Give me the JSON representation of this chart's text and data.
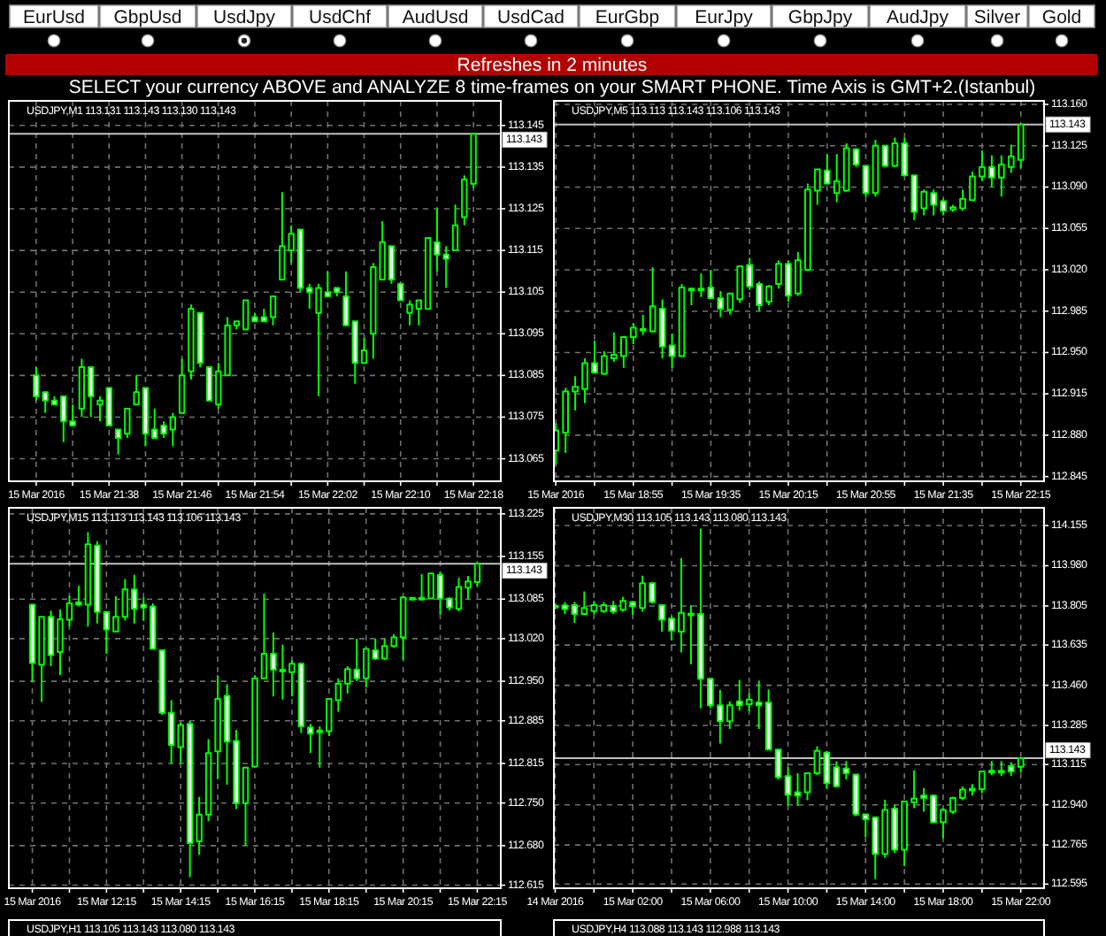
{
  "chart_data": [
    {
      "type": "other",
      "title": "Refreshes in 2 minutes",
      "subtitle": "SELECT your currency ABOVE and ANALYZE 8 time-frames on your SMART PHONE. Time Axis is GMT+2.(Istanbul)",
      "annotations": [
        "EurUsd",
        "GbpUsd",
        "UsdJpy",
        "UsdChf",
        "AudUsd",
        "UsdCad",
        "EurGbp",
        "EurJpy",
        "GbpJpy",
        "AudJpy",
        "Silver",
        "Gold"
      ]
    },
    {
      "type": "candlestick",
      "title": "USDJPY,M1 113.131 113.143 113.130 113.143",
      "color": "#00ff00",
      "grid": true,
      "x": [
        "2016-03-15T21:30",
        "2016-03-15T21:31",
        "2016-03-15T21:32",
        "2016-03-15T21:33",
        "2016-03-15T21:34",
        "2016-03-15T21:35",
        "2016-03-15T21:36",
        "2016-03-15T21:37",
        "2016-03-15T21:38",
        "2016-03-15T21:39",
        "2016-03-15T21:40",
        "2016-03-15T21:41",
        "2016-03-15T21:42",
        "2016-03-15T21:43",
        "2016-03-15T21:44",
        "2016-03-15T21:45",
        "2016-03-15T21:46",
        "2016-03-15T21:47",
        "2016-03-15T21:48",
        "2016-03-15T21:49",
        "2016-03-15T21:50",
        "2016-03-15T21:51",
        "2016-03-15T21:52",
        "2016-03-15T21:53",
        "2016-03-15T21:54",
        "2016-03-15T21:55",
        "2016-03-15T21:56",
        "2016-03-15T21:57",
        "2016-03-15T21:58",
        "2016-03-15T21:59",
        "2016-03-15T22:00",
        "2016-03-15T22:01",
        "2016-03-15T22:02",
        "2016-03-15T22:03",
        "2016-03-15T22:04",
        "2016-03-15T22:05",
        "2016-03-15T22:06",
        "2016-03-15T22:07",
        "2016-03-15T22:08",
        "2016-03-15T22:09",
        "2016-03-15T22:10",
        "2016-03-15T22:11",
        "2016-03-15T22:12",
        "2016-03-15T22:13",
        "2016-03-15T22:14",
        "2016-03-15T22:15",
        "2016-03-15T22:16",
        "2016-03-15T22:17",
        "2016-03-15T22:18"
      ],
      "ohlc": [
        [
          113.085,
          113.087,
          113.079,
          113.08
        ],
        [
          113.081,
          113.081,
          113.076,
          113.079
        ],
        [
          113.079,
          113.08,
          113.078,
          113.078
        ],
        [
          113.08,
          113.08,
          113.069,
          113.074
        ],
        [
          113.074,
          113.078,
          113.073,
          113.073
        ],
        [
          113.077,
          113.089,
          113.075,
          113.087
        ],
        [
          113.087,
          113.087,
          113.075,
          113.08
        ],
        [
          113.078,
          113.08,
          113.074,
          113.079
        ],
        [
          113.082,
          113.082,
          113.073,
          113.073
        ],
        [
          113.072,
          113.072,
          113.066,
          113.07
        ],
        [
          113.071,
          113.077,
          113.07,
          113.077
        ],
        [
          113.078,
          113.085,
          113.078,
          113.081
        ],
        [
          113.082,
          113.082,
          113.068,
          113.071
        ],
        [
          113.072,
          113.077,
          113.07,
          113.07
        ],
        [
          113.073,
          113.074,
          113.07,
          113.071
        ],
        [
          113.072,
          113.076,
          113.068,
          113.075
        ],
        [
          113.076,
          113.089,
          113.076,
          113.085
        ],
        [
          113.086,
          113.102,
          113.084,
          113.101
        ],
        [
          113.1,
          113.1,
          113.087,
          113.088
        ],
        [
          113.087,
          113.087,
          113.079,
          113.079
        ],
        [
          113.078,
          113.088,
          113.077,
          113.086
        ],
        [
          113.085,
          113.099,
          113.085,
          113.097
        ],
        [
          113.097,
          113.098,
          113.096,
          113.098
        ],
        [
          113.096,
          113.103,
          113.096,
          113.103
        ],
        [
          113.099,
          113.1,
          113.098,
          113.098
        ],
        [
          113.099,
          113.101,
          113.098,
          113.098
        ],
        [
          113.099,
          113.104,
          113.097,
          113.104
        ],
        [
          113.108,
          113.129,
          113.108,
          113.116
        ],
        [
          113.115,
          113.121,
          113.112,
          113.119
        ],
        [
          113.12,
          113.12,
          113.105,
          113.106
        ],
        [
          113.106,
          113.107,
          113.101,
          113.105
        ],
        [
          113.1,
          113.107,
          113.08,
          113.106
        ],
        [
          113.105,
          113.11,
          113.104,
          113.104
        ],
        [
          113.106,
          113.106,
          113.104,
          113.105
        ],
        [
          113.104,
          113.11,
          113.097,
          113.097
        ],
        [
          113.098,
          113.098,
          113.083,
          113.088
        ],
        [
          113.088,
          113.094,
          113.088,
          113.091
        ],
        [
          113.095,
          113.112,
          113.089,
          113.111
        ],
        [
          113.108,
          113.122,
          113.108,
          113.117
        ],
        [
          113.116,
          113.116,
          113.107,
          113.108
        ],
        [
          113.107,
          113.107,
          113.103,
          113.103
        ],
        [
          113.1,
          113.103,
          113.097,
          113.102
        ],
        [
          113.101,
          113.103,
          113.097,
          113.103
        ],
        [
          113.101,
          113.118,
          113.101,
          113.118
        ],
        [
          113.117,
          113.125,
          113.11,
          113.114
        ],
        [
          113.114,
          113.116,
          113.106,
          113.113
        ],
        [
          113.115,
          113.126,
          113.115,
          113.121
        ],
        [
          113.123,
          113.133,
          113.121,
          113.132
        ],
        [
          113.131,
          113.143,
          113.13,
          113.143
        ]
      ],
      "xlim": [
        "2016-03-15T21:27",
        "2016-03-15T22:21"
      ],
      "xticks": [
        {
          "value": "2016-03-15T21:30",
          "label": "15 Mar 2016"
        },
        {
          "value": "2016-03-15T21:34",
          "label": null
        },
        {
          "value": "2016-03-15T21:38",
          "label": "15 Mar 21:38"
        },
        {
          "value": "2016-03-15T21:42",
          "label": null
        },
        {
          "value": "2016-03-15T21:46",
          "label": "15 Mar 21:46"
        },
        {
          "value": "2016-03-15T21:50",
          "label": null
        },
        {
          "value": "2016-03-15T21:54",
          "label": "15 Mar 21:54"
        },
        {
          "value": "2016-03-15T21:58",
          "label": null
        },
        {
          "value": "2016-03-15T22:02",
          "label": "15 Mar 22:02"
        },
        {
          "value": "2016-03-15T22:06",
          "label": null
        },
        {
          "value": "2016-03-15T22:10",
          "label": "15 Mar 22:10"
        },
        {
          "value": "2016-03-15T22:14",
          "label": null
        },
        {
          "value": "2016-03-15T22:18",
          "label": "15 Mar 22:18"
        }
      ],
      "ylim": [
        113.0596,
        113.1509
      ],
      "yticks": [
        113.065,
        113.075,
        113.085,
        113.095,
        113.105,
        113.115,
        113.125,
        113.135,
        113.145
      ],
      "ref_lines": [
        {
          "axis": "y",
          "value": 113.143,
          "label": "113.143",
          "color": "#c0c0c0"
        }
      ]
    },
    {
      "type": "candlestick",
      "title": "USDJPY,M5 113.113 113.143 113.106 113.143",
      "color": "#00ff00",
      "grid": true,
      "x": [
        "2016-03-15T18:15",
        "2016-03-15T18:20",
        "2016-03-15T18:25",
        "2016-03-15T18:30",
        "2016-03-15T18:35",
        "2016-03-15T18:40",
        "2016-03-15T18:45",
        "2016-03-15T18:50",
        "2016-03-15T18:55",
        "2016-03-15T19:00",
        "2016-03-15T19:05",
        "2016-03-15T19:10",
        "2016-03-15T19:15",
        "2016-03-15T19:20",
        "2016-03-15T19:25",
        "2016-03-15T19:30",
        "2016-03-15T19:35",
        "2016-03-15T19:40",
        "2016-03-15T19:45",
        "2016-03-15T19:50",
        "2016-03-15T19:55",
        "2016-03-15T20:00",
        "2016-03-15T20:05",
        "2016-03-15T20:10",
        "2016-03-15T20:15",
        "2016-03-15T20:20",
        "2016-03-15T20:25",
        "2016-03-15T20:30",
        "2016-03-15T20:35",
        "2016-03-15T20:40",
        "2016-03-15T20:45",
        "2016-03-15T20:50",
        "2016-03-15T20:55",
        "2016-03-15T21:00",
        "2016-03-15T21:05",
        "2016-03-15T21:10",
        "2016-03-15T21:15",
        "2016-03-15T21:20",
        "2016-03-15T21:25",
        "2016-03-15T21:30",
        "2016-03-15T21:35",
        "2016-03-15T21:40",
        "2016-03-15T21:45",
        "2016-03-15T21:50",
        "2016-03-15T21:55",
        "2016-03-15T22:00",
        "2016-03-15T22:05",
        "2016-03-15T22:10",
        "2016-03-15T22:15"
      ],
      "ohlc": [
        [
          112.867,
          112.89,
          112.855,
          112.884
        ],
        [
          112.882,
          112.92,
          112.865,
          112.917
        ],
        [
          112.917,
          112.93,
          112.901,
          112.921
        ],
        [
          112.919,
          112.945,
          112.907,
          112.941
        ],
        [
          112.941,
          112.96,
          112.932,
          112.933
        ],
        [
          112.932,
          112.951,
          112.931,
          112.947
        ],
        [
          112.945,
          112.967,
          112.942,
          112.948
        ],
        [
          112.947,
          112.963,
          112.937,
          112.963
        ],
        [
          112.963,
          112.975,
          112.957,
          112.971
        ],
        [
          112.969,
          112.982,
          112.965,
          112.97
        ],
        [
          112.968,
          113.022,
          112.967,
          112.989
        ],
        [
          112.987,
          112.995,
          112.945,
          112.955
        ],
        [
          112.956,
          112.966,
          112.937,
          112.947
        ],
        [
          112.947,
          113.008,
          112.947,
          113.005
        ],
        [
          113.003,
          113.005,
          112.99,
          113.004
        ],
        [
          113.003,
          113.017,
          112.997,
          113.004
        ],
        [
          113.005,
          113.02,
          112.995,
          112.996
        ],
        [
          112.996,
          113.002,
          112.98,
          112.987
        ],
        [
          112.986,
          113.0,
          112.982,
          113.0
        ],
        [
          112.995,
          113.023,
          112.992,
          113.023
        ],
        [
          113.024,
          113.03,
          113.003,
          113.006
        ],
        [
          113.008,
          113.01,
          112.985,
          112.99
        ],
        [
          112.993,
          113.007,
          112.99,
          113.006
        ],
        [
          113.008,
          113.028,
          113.004,
          113.025
        ],
        [
          113.025,
          113.028,
          112.993,
          112.998
        ],
        [
          113.0,
          113.035,
          112.998,
          113.028
        ],
        [
          113.02,
          113.093,
          113.02,
          113.088
        ],
        [
          113.087,
          113.105,
          113.075,
          113.105
        ],
        [
          113.104,
          113.118,
          113.092,
          113.093
        ],
        [
          113.085,
          113.118,
          113.077,
          113.095
        ],
        [
          113.087,
          113.127,
          113.086,
          113.123
        ],
        [
          113.122,
          113.123,
          113.107,
          113.109
        ],
        [
          113.108,
          113.108,
          113.082,
          113.085
        ],
        [
          113.085,
          113.13,
          113.082,
          113.125
        ],
        [
          113.125,
          113.125,
          113.107,
          113.108
        ],
        [
          113.108,
          113.132,
          113.107,
          113.127
        ],
        [
          113.127,
          113.132,
          113.1,
          113.1
        ],
        [
          113.1,
          113.1,
          113.062,
          113.069
        ],
        [
          113.072,
          113.088,
          113.066,
          113.086
        ],
        [
          113.085,
          113.088,
          113.066,
          113.075
        ],
        [
          113.078,
          113.08,
          113.066,
          113.07
        ],
        [
          113.071,
          113.075,
          113.069,
          113.073
        ],
        [
          113.072,
          113.088,
          113.07,
          113.08
        ],
        [
          113.079,
          113.103,
          113.078,
          113.099
        ],
        [
          113.099,
          113.121,
          113.095,
          113.107
        ],
        [
          113.107,
          113.117,
          113.09,
          113.098
        ],
        [
          113.098,
          113.117,
          113.082,
          113.109
        ],
        [
          113.107,
          113.126,
          113.102,
          113.116
        ],
        [
          113.113,
          113.143,
          113.106,
          113.143
        ]
      ],
      "xlim": [
        "2016-03-15T18:14",
        "2016-03-15T22:27"
      ],
      "xticks": [
        {
          "value": "2016-03-15T18:15",
          "label": "15 Mar 2016"
        },
        {
          "value": "2016-03-15T18:35",
          "label": null
        },
        {
          "value": "2016-03-15T18:55",
          "label": "15 Mar 18:55"
        },
        {
          "value": "2016-03-15T19:15",
          "label": null
        },
        {
          "value": "2016-03-15T19:35",
          "label": "15 Mar 19:35"
        },
        {
          "value": "2016-03-15T19:55",
          "label": null
        },
        {
          "value": "2016-03-15T20:15",
          "label": "15 Mar 20:15"
        },
        {
          "value": "2016-03-15T20:35",
          "label": null
        },
        {
          "value": "2016-03-15T20:55",
          "label": "15 Mar 20:55"
        },
        {
          "value": "2016-03-15T21:15",
          "label": null
        },
        {
          "value": "2016-03-15T21:35",
          "label": "15 Mar 21:35"
        },
        {
          "value": "2016-03-15T21:55",
          "label": null
        },
        {
          "value": "2016-03-15T22:15",
          "label": "15 Mar 22:15"
        }
      ],
      "ylim": [
        112.841,
        113.163
      ],
      "yticks": [
        {
          "value": 113.16,
          "label": "113.160"
        },
        113.125,
        {
          "value": 113.09,
          "label": "113.090"
        },
        113.055,
        {
          "value": 113.02,
          "label": "113.020"
        },
        112.985,
        {
          "value": 112.95,
          "label": "112.950"
        },
        112.915,
        {
          "value": 112.88,
          "label": "112.880"
        },
        112.845
      ],
      "ref_lines": [
        {
          "axis": "y",
          "value": 113.143,
          "label": "113.143",
          "color": "#c0c0c0"
        }
      ]
    },
    {
      "type": "candlestick",
      "title": "USDJPY,M15 113.113 113.143 113.106 113.143",
      "color": "#00ff00",
      "grid": true,
      "x": [
        "2016-03-15T10:15",
        "2016-03-15T10:30",
        "2016-03-15T10:45",
        "2016-03-15T11:00",
        "2016-03-15T11:15",
        "2016-03-15T11:30",
        "2016-03-15T11:45",
        "2016-03-15T12:00",
        "2016-03-15T12:15",
        "2016-03-15T12:30",
        "2016-03-15T12:45",
        "2016-03-15T13:00",
        "2016-03-15T13:15",
        "2016-03-15T13:30",
        "2016-03-15T13:45",
        "2016-03-15T14:00",
        "2016-03-15T14:15",
        "2016-03-15T14:30",
        "2016-03-15T14:45",
        "2016-03-15T15:00",
        "2016-03-15T15:15",
        "2016-03-15T15:30",
        "2016-03-15T15:45",
        "2016-03-15T16:00",
        "2016-03-15T16:15",
        "2016-03-15T16:30",
        "2016-03-15T16:45",
        "2016-03-15T17:00",
        "2016-03-15T17:15",
        "2016-03-15T17:30",
        "2016-03-15T17:45",
        "2016-03-15T18:00",
        "2016-03-15T18:15",
        "2016-03-15T18:30",
        "2016-03-15T18:45",
        "2016-03-15T19:00",
        "2016-03-15T19:15",
        "2016-03-15T19:30",
        "2016-03-15T19:45",
        "2016-03-15T20:00",
        "2016-03-15T20:15",
        "2016-03-15T20:30",
        "2016-03-15T20:45",
        "2016-03-15T21:00",
        "2016-03-15T21:15",
        "2016-03-15T21:30",
        "2016-03-15T21:45",
        "2016-03-15T22:00",
        "2016-03-15T22:15"
      ],
      "ohlc": [
        [
          113.076,
          113.076,
          112.95,
          112.98
        ],
        [
          112.977,
          113.056,
          112.916,
          113.056
        ],
        [
          113.056,
          113.066,
          112.975,
          112.993
        ],
        [
          112.998,
          113.068,
          112.96,
          113.052
        ],
        [
          113.051,
          113.09,
          113.04,
          113.078
        ],
        [
          113.08,
          113.107,
          113.073,
          113.076
        ],
        [
          113.076,
          113.195,
          113.04,
          113.175
        ],
        [
          113.173,
          113.18,
          113.045,
          113.064
        ],
        [
          113.064,
          113.064,
          112.995,
          113.035
        ],
        [
          113.032,
          113.09,
          113.032,
          113.056
        ],
        [
          113.056,
          113.118,
          113.05,
          113.101
        ],
        [
          113.101,
          113.125,
          113.045,
          113.069
        ],
        [
          113.076,
          113.088,
          113.049,
          113.071
        ],
        [
          113.073,
          113.078,
          113.003,
          113.003
        ],
        [
          113.001,
          113.002,
          112.895,
          112.898
        ],
        [
          112.898,
          112.919,
          112.815,
          112.845
        ],
        [
          112.842,
          112.882,
          112.815,
          112.878
        ],
        [
          112.88,
          112.885,
          112.628,
          112.684
        ],
        [
          112.687,
          112.76,
          112.665,
          112.731
        ],
        [
          112.731,
          112.855,
          112.72,
          112.832
        ],
        [
          112.835,
          112.96,
          112.789,
          112.921
        ],
        [
          112.926,
          112.945,
          112.78,
          112.851
        ],
        [
          112.852,
          112.87,
          112.74,
          112.75
        ],
        [
          112.75,
          112.808,
          112.68,
          112.808
        ],
        [
          112.81,
          112.96,
          112.81,
          112.955
        ],
        [
          112.955,
          113.094,
          112.955,
          112.995
        ],
        [
          112.995,
          113.03,
          112.925,
          112.969
        ],
        [
          112.969,
          113.01,
          112.92,
          112.966
        ],
        [
          112.965,
          112.985,
          112.925,
          112.979
        ],
        [
          112.979,
          112.979,
          112.865,
          112.876
        ],
        [
          112.874,
          112.88,
          112.832,
          112.864
        ],
        [
          112.867,
          112.876,
          112.808,
          112.869
        ],
        [
          112.868,
          112.921,
          112.86,
          112.921
        ],
        [
          112.919,
          112.955,
          112.9,
          112.946
        ],
        [
          112.946,
          112.975,
          112.93,
          112.97
        ],
        [
          112.969,
          113.02,
          112.95,
          112.955
        ],
        [
          112.955,
          113.003,
          112.94,
          113.003
        ],
        [
          113.001,
          113.02,
          112.985,
          112.987
        ],
        [
          112.987,
          113.02,
          112.985,
          113.008
        ],
        [
          113.008,
          113.027,
          113.005,
          113.022
        ],
        [
          113.022,
          113.09,
          112.985,
          113.088
        ],
        [
          113.086,
          113.088,
          113.085,
          113.087
        ],
        [
          113.086,
          113.126,
          113.085,
          113.087
        ],
        [
          113.086,
          113.127,
          113.086,
          113.127
        ],
        [
          113.125,
          113.13,
          113.06,
          113.086
        ],
        [
          113.086,
          113.088,
          113.066,
          113.071
        ],
        [
          113.069,
          113.12,
          113.065,
          113.105
        ],
        [
          113.104,
          113.123,
          113.085,
          113.114
        ],
        [
          113.113,
          113.143,
          113.106,
          113.143
        ]
      ],
      "xlim": [
        "2016-03-15T09:37",
        "2016-03-15T22:53"
      ],
      "xticks": [
        {
          "value": "2016-03-15T10:15",
          "label": "15 Mar 2016"
        },
        {
          "value": "2016-03-15T11:15",
          "label": null
        },
        {
          "value": "2016-03-15T12:15",
          "label": "15 Mar 12:15"
        },
        {
          "value": "2016-03-15T13:15",
          "label": null
        },
        {
          "value": "2016-03-15T14:15",
          "label": "15 Mar 14:15"
        },
        {
          "value": "2016-03-15T15:15",
          "label": null
        },
        {
          "value": "2016-03-15T16:15",
          "label": "15 Mar 16:15"
        },
        {
          "value": "2016-03-15T17:15",
          "label": null
        },
        {
          "value": "2016-03-15T18:15",
          "label": "15 Mar 18:15"
        },
        {
          "value": "2016-03-15T19:15",
          "label": null
        },
        {
          "value": "2016-03-15T20:15",
          "label": "15 Mar 20:15"
        },
        {
          "value": "2016-03-15T21:15",
          "label": null
        },
        {
          "value": "2016-03-15T22:15",
          "label": "15 Mar 22:15"
        }
      ],
      "ylim": [
        112.61,
        113.235
      ],
      "yticks": [
        113.225,
        113.155,
        113.085,
        {
          "value": 113.02,
          "label": "113.020"
        },
        {
          "value": 112.95,
          "label": "112.950"
        },
        112.885,
        112.815,
        {
          "value": 112.75,
          "label": "112.750"
        },
        {
          "value": 112.68,
          "label": "112.680"
        },
        112.615
      ],
      "ref_lines": [
        {
          "axis": "y",
          "value": 113.143,
          "label": "113.143",
          "color": "#c0c0c0"
        }
      ]
    },
    {
      "type": "candlestick",
      "title": "USDJPY,M30 113.105 113.143 113.080 113.143",
      "color": "#00ff00",
      "grid": true,
      "x": [
        "2016-03-14T22:00",
        "2016-03-14T22:30",
        "2016-03-14T23:00",
        "2016-03-14T23:30",
        "2016-03-15T00:00",
        "2016-03-15T00:30",
        "2016-03-15T01:00",
        "2016-03-15T01:30",
        "2016-03-15T02:00",
        "2016-03-15T02:30",
        "2016-03-15T03:00",
        "2016-03-15T03:30",
        "2016-03-15T04:00",
        "2016-03-15T04:30",
        "2016-03-15T05:00",
        "2016-03-15T05:30",
        "2016-03-15T06:00",
        "2016-03-15T06:30",
        "2016-03-15T07:00",
        "2016-03-15T07:30",
        "2016-03-15T08:00",
        "2016-03-15T08:30",
        "2016-03-15T09:00",
        "2016-03-15T09:30",
        "2016-03-15T10:00",
        "2016-03-15T10:30",
        "2016-03-15T11:00",
        "2016-03-15T11:30",
        "2016-03-15T12:00",
        "2016-03-15T12:30",
        "2016-03-15T13:00",
        "2016-03-15T13:30",
        "2016-03-15T14:00",
        "2016-03-15T14:30",
        "2016-03-15T15:00",
        "2016-03-15T15:30",
        "2016-03-15T16:00",
        "2016-03-15T16:30",
        "2016-03-15T17:00",
        "2016-03-15T17:30",
        "2016-03-15T18:00",
        "2016-03-15T18:30",
        "2016-03-15T19:00",
        "2016-03-15T19:30",
        "2016-03-15T20:00",
        "2016-03-15T20:30",
        "2016-03-15T21:00",
        "2016-03-15T21:30",
        "2016-03-15T22:00"
      ],
      "ohlc": [
        [
          113.8,
          113.815,
          113.79,
          113.806
        ],
        [
          113.808,
          113.822,
          113.77,
          113.791
        ],
        [
          113.809,
          113.822,
          113.732,
          113.77
        ],
        [
          113.77,
          113.868,
          113.765,
          113.796
        ],
        [
          113.783,
          113.827,
          113.77,
          113.809
        ],
        [
          113.783,
          113.822,
          113.775,
          113.809
        ],
        [
          113.806,
          113.827,
          113.77,
          113.781
        ],
        [
          113.788,
          113.845,
          113.78,
          113.827
        ],
        [
          113.822,
          113.827,
          113.765,
          113.804
        ],
        [
          113.796,
          113.937,
          113.78,
          113.904
        ],
        [
          113.904,
          113.91,
          113.815,
          113.822
        ],
        [
          113.809,
          113.812,
          113.693,
          113.745
        ],
        [
          113.75,
          113.76,
          113.655,
          113.698
        ],
        [
          113.693,
          114.014,
          113.603,
          113.775
        ],
        [
          113.765,
          113.809,
          113.552,
          113.772
        ],
        [
          113.77,
          114.142,
          113.36,
          113.488
        ],
        [
          113.488,
          113.488,
          113.36,
          113.373
        ],
        [
          113.373,
          113.44,
          113.206,
          113.303
        ],
        [
          113.303,
          113.39,
          113.27,
          113.373
        ],
        [
          113.39,
          113.483,
          113.35,
          113.373
        ],
        [
          113.378,
          113.425,
          113.347,
          113.398
        ],
        [
          113.385,
          113.48,
          113.27,
          113.373
        ],
        [
          113.385,
          113.442,
          113.18,
          113.18
        ],
        [
          113.18,
          113.18,
          113.05,
          113.06
        ],
        [
          113.065,
          113.103,
          112.936,
          112.983
        ],
        [
          112.995,
          113.077,
          112.935,
          112.98
        ],
        [
          112.995,
          113.077,
          112.96,
          113.077
        ],
        [
          113.077,
          113.195,
          113.07,
          113.175
        ],
        [
          113.167,
          113.175,
          113.01,
          113.034
        ],
        [
          113.103,
          113.129,
          113.015,
          113.021
        ],
        [
          113.098,
          113.13,
          113.05,
          113.077
        ],
        [
          113.072,
          113.072,
          112.89,
          112.898
        ],
        [
          112.898,
          112.898,
          112.8,
          112.877
        ],
        [
          112.885,
          112.89,
          112.616,
          112.726
        ],
        [
          112.726,
          112.962,
          112.71,
          112.918
        ],
        [
          112.923,
          112.94,
          112.73,
          112.744
        ],
        [
          112.744,
          112.954,
          112.672,
          112.954
        ],
        [
          112.951,
          113.09,
          112.925,
          112.967
        ],
        [
          112.98,
          113.013,
          112.91,
          112.97
        ],
        [
          112.98,
          112.985,
          112.86,
          112.864
        ],
        [
          112.864,
          112.925,
          112.795,
          112.918
        ],
        [
          112.91,
          112.975,
          112.9,
          112.97
        ],
        [
          112.97,
          113.02,
          112.96,
          113.006
        ],
        [
          113.005,
          113.03,
          112.98,
          113.01
        ],
        [
          113.008,
          113.085,
          112.99,
          113.085
        ],
        [
          113.083,
          113.13,
          113.07,
          113.088
        ],
        [
          113.085,
          113.13,
          113.065,
          113.088
        ],
        [
          113.108,
          113.125,
          113.065,
          113.085
        ],
        [
          113.105,
          113.143,
          113.08,
          113.143
        ]
      ],
      "xlim": [
        "2016-03-14T21:56",
        "2016-03-15T23:12"
      ],
      "xticks": [
        {
          "value": "2016-03-14T22:00",
          "label": "14 Mar 2016"
        },
        {
          "value": "2016-03-15T00:00",
          "label": null
        },
        {
          "value": "2016-03-15T02:00",
          "label": "15 Mar 02:00"
        },
        {
          "value": "2016-03-15T04:00",
          "label": null
        },
        {
          "value": "2016-03-15T06:00",
          "label": "15 Mar 06:00"
        },
        {
          "value": "2016-03-15T08:00",
          "label": null
        },
        {
          "value": "2016-03-15T10:00",
          "label": "15 Mar 10:00"
        },
        {
          "value": "2016-03-15T12:00",
          "label": null
        },
        {
          "value": "2016-03-15T14:00",
          "label": "15 Mar 14:00"
        },
        {
          "value": "2016-03-15T16:00",
          "label": null
        },
        {
          "value": "2016-03-15T18:00",
          "label": "15 Mar 18:00"
        },
        {
          "value": "2016-03-15T20:00",
          "label": null
        },
        {
          "value": "2016-03-15T22:00",
          "label": "15 Mar 22:00"
        }
      ],
      "ylim": [
        112.577,
        114.232
      ],
      "yticks": [
        114.155,
        {
          "value": 113.98,
          "label": "113.980"
        },
        113.805,
        113.635,
        {
          "value": 113.46,
          "label": "113.460"
        },
        113.285,
        113.115,
        {
          "value": 112.94,
          "label": "112.940"
        },
        112.765,
        112.595
      ],
      "ref_lines": [
        {
          "axis": "y",
          "value": 113.143,
          "label": "113.143",
          "color": "#c0c0c0"
        }
      ]
    },
    {
      "type": "other",
      "title": "USDJPY,H1 113.105 113.143 113.080 113.143"
    },
    {
      "type": "other",
      "title": "USDJPY,H4 113.088 113.143 112.988 113.143"
    }
  ]
}
